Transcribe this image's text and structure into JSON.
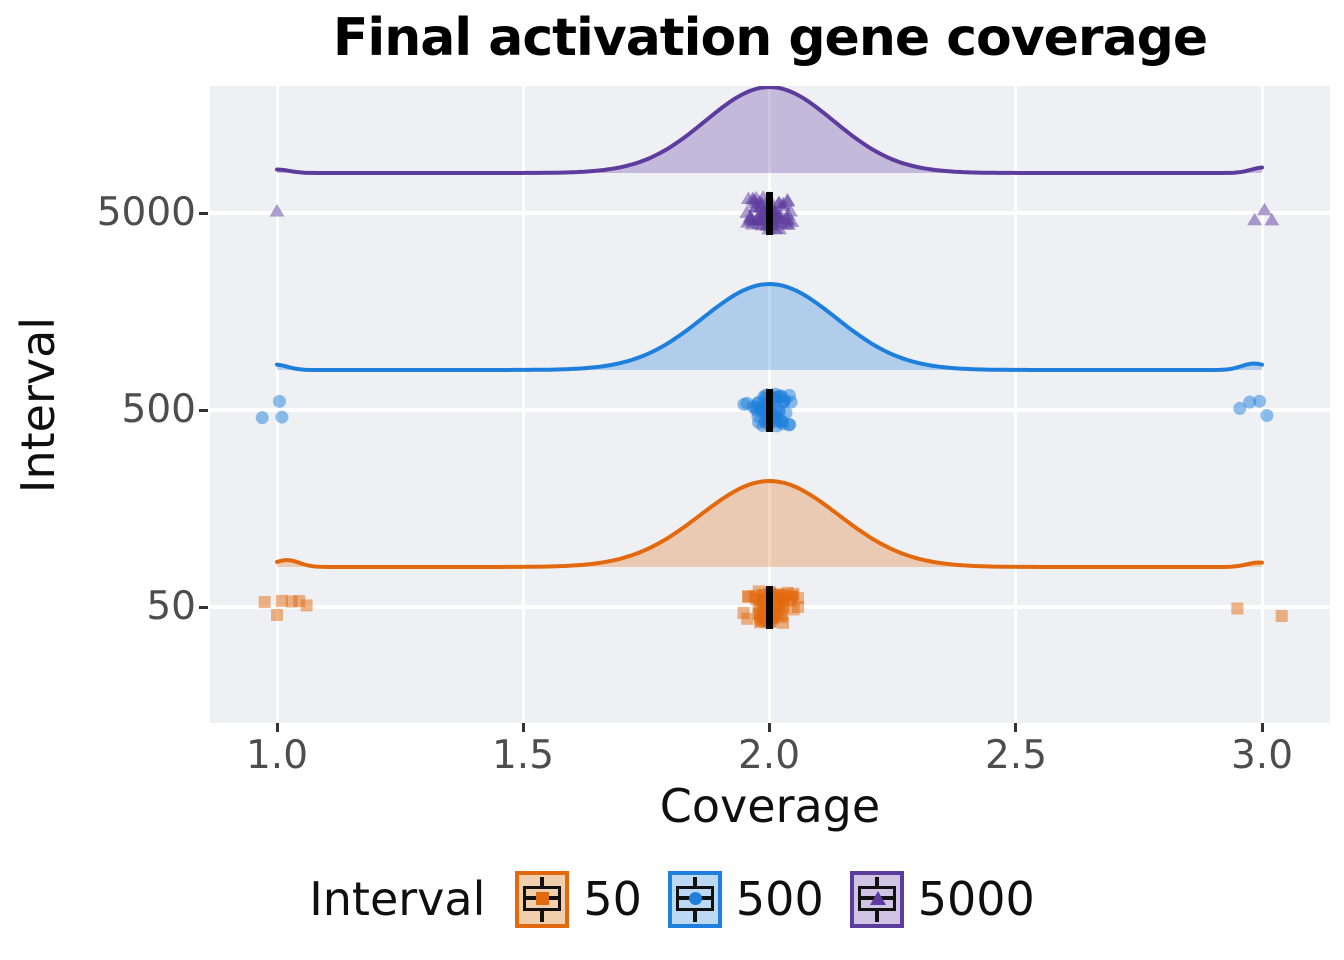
{
  "title": "Final activation gene coverage",
  "x_axis": {
    "label": "Coverage",
    "tick_labels": [
      "1.0",
      "1.5",
      "2.0",
      "2.5",
      "3.0"
    ],
    "tick_values": [
      1.0,
      1.5,
      2.0,
      2.5,
      3.0
    ]
  },
  "y_axis": {
    "label": "Interval",
    "tick_labels": [
      "5000",
      "500",
      "50"
    ]
  },
  "legend": {
    "title": "Interval",
    "entries": [
      {
        "label": "50",
        "marker": "square",
        "color": "#E2690E",
        "key_fill": "#F2CFAC"
      },
      {
        "label": "500",
        "marker": "circle",
        "color": "#1E80DC",
        "key_fill": "#BCD8F2"
      },
      {
        "label": "5000",
        "marker": "triangle",
        "color": "#5E3C9E",
        "key_fill": "#CFC4E3"
      }
    ]
  },
  "chart_data": {
    "type": "raincloud (half-density curve + jittered points + median bar per category)",
    "x_variable": "Coverage",
    "y_variable": "Interval",
    "x_range_shown": [
      1.0,
      3.0
    ],
    "categories_top_to_bottom": [
      "5000",
      "500",
      "50"
    ],
    "series": [
      {
        "interval": "5000",
        "marker": "triangle",
        "color": "#5E3C9E",
        "fill_alpha": 0.3,
        "distribution": {
          "peak_x": 2.0,
          "sd": 0.13
        },
        "median": 2.0,
        "cluster": {
          "center": 2.0,
          "half_width": 0.068,
          "count": 78
        },
        "outliers_left": [
          1.0
        ],
        "outliers_right": [
          2.985,
          3.005,
          3.02
        ]
      },
      {
        "interval": "500",
        "marker": "circle",
        "color": "#1E80DC",
        "fill_alpha": 0.3,
        "distribution": {
          "peak_x": 2.0,
          "sd": 0.135
        },
        "median": 2.0,
        "cluster": {
          "center": 2.0,
          "half_width": 0.062,
          "count": 65
        },
        "outliers_left": [
          0.97,
          1.005,
          1.01
        ],
        "outliers_right": [
          2.955,
          2.975,
          2.995,
          3.01
        ]
      },
      {
        "interval": "50",
        "marker": "square",
        "color": "#E2690E",
        "fill_alpha": 0.28,
        "distribution": {
          "peak_x": 2.0,
          "sd": 0.14
        },
        "median": 2.0,
        "cluster": {
          "center": 2.0,
          "half_width": 0.07,
          "count": 70
        },
        "outliers_left": [
          0.975,
          1.0,
          1.01,
          1.03,
          1.045,
          1.06
        ],
        "outliers_right": [
          2.95,
          3.04
        ]
      }
    ]
  }
}
